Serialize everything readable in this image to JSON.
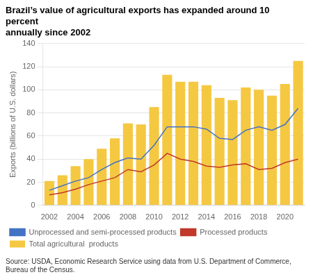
{
  "chart_data": {
    "type": "bar",
    "title": "Brazil’s value of agricultural exports has expanded around 10 percent\nannually since 2002",
    "ylabel": "Exports (billions of U.S. dollars)",
    "source": "Source: USDA, Economic Research Service using data from U.S. Department of Commerce,\nBureau of the Census.",
    "categories": [
      2002,
      null,
      2004,
      null,
      2006,
      null,
      2008,
      null,
      2010,
      null,
      2012,
      null,
      2014,
      null,
      2016,
      null,
      2018,
      null,
      2020,
      null
    ],
    "series": [
      {
        "name": "Total agricultural  products",
        "type": "bar",
        "color": "#F5C842",
        "values": [
          21,
          26,
          34,
          40,
          49,
          58,
          71,
          70,
          85,
          113,
          107,
          107,
          104,
          93,
          91,
          102,
          100,
          95,
          105,
          125
        ]
      },
      {
        "name": "Unprocessed and semi-processed products",
        "type": "line",
        "color": "#4472C4",
        "values": [
          13,
          17,
          21,
          24,
          31,
          37,
          41,
          40,
          52,
          68,
          68,
          68,
          66,
          58,
          57,
          65,
          68,
          65,
          70,
          84
        ]
      },
      {
        "name": "Processed products",
        "type": "line",
        "color": "#C0392B",
        "values": [
          9,
          11,
          14,
          18,
          21,
          24,
          31,
          29,
          35,
          45,
          40,
          38,
          34,
          33,
          35,
          36,
          31,
          32,
          37,
          40
        ]
      }
    ],
    "ylim": [
      0,
      140
    ],
    "yticks": [
      0,
      20,
      40,
      60,
      80,
      100,
      120,
      140
    ],
    "grid": true,
    "legend": "bottom"
  }
}
